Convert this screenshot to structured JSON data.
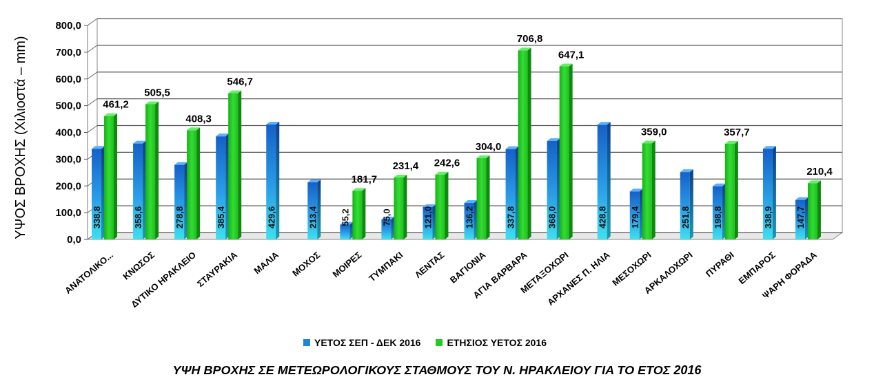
{
  "chart_data": {
    "type": "bar",
    "title": "ΥΨΗ ΒΡΟΧΗΣ ΣΕ ΜΕΤΕΩΡΟΛΟΓΙΚΟΥΣ ΣΤΑΘΜΟΥΣ ΤΟΥ Ν. ΗΡΑΚΛΕΙΟΥ ΓΙΑ ΤΟ ΕΤΟΣ 2016",
    "ylabel": "ΥΨΟΣ ΒΡΟΧΗΣ (Χιλιοστά – mm)",
    "xlabel": "",
    "ylim": [
      0,
      800
    ],
    "yticks": [
      "0,0",
      "100,0",
      "200,0",
      "300,0",
      "400,0",
      "500,0",
      "600,0",
      "700,0",
      "800,0"
    ],
    "grid": true,
    "legend": "bottom",
    "categories": [
      "ΑΝΑΤΟΛΙΚΟ...",
      "ΚΝΩΣΟΣ",
      "ΔΥΤΙΚΟ ΗΡΑΚΛΕΙΟ",
      "ΣΤΑΥΡΑΚΙΑ",
      "ΜΑΛΙΑ",
      "ΜΟΧΟΣ",
      "ΜΟΙΡΕΣ",
      "ΤΥΜΠΑΚΙ",
      "ΛΕΝΤΑΣ",
      "ΒΑΓΙΟΝΙΑ",
      "ΑΓΙΑ ΒΑΡΒΑΡΑ",
      "ΜΕΤΑΞΟΧΩΡΙ",
      "ΑΡΧΑΝΕΣ Π. ΗΛΙΑ",
      "ΜΕΣΟΧΩΡΙ",
      "ΑΡΚΑΛΟΧΩΡΙ",
      "ΠΥΡΑΘΙ",
      "ΕΜΠΑΡΟΣ",
      "ΨΑΡΗ ΦΟΡΑΔΑ"
    ],
    "series": [
      {
        "name": "ΥΕΤΟΣ ΣΕΠ - ΔΕΚ 2016",
        "color": "#1e88d8",
        "values": [
          338.8,
          358.6,
          278.8,
          385.4,
          429.6,
          213.4,
          55.2,
          75.0,
          121.0,
          136.2,
          337.8,
          368.0,
          428.8,
          179.4,
          251.8,
          198.8,
          338.9,
          147.7
        ],
        "labels": [
          "338,8",
          "358,6",
          "278,8",
          "385,4",
          "429,6",
          "213,4",
          "55,2",
          "75,0",
          "121,0",
          "136,2",
          "337,8",
          "368,0",
          "428,8",
          "179,4",
          "251,8",
          "198,8",
          "338,9",
          "147,7"
        ]
      },
      {
        "name": "ΕΤΗΣΙΟΣ ΥΕΤΟΣ 2016",
        "color": "#22cc22",
        "values": [
          461.2,
          505.5,
          408.3,
          546.7,
          null,
          null,
          181.7,
          231.4,
          242.6,
          304.0,
          706.8,
          647.1,
          null,
          359.0,
          null,
          357.7,
          null,
          210.4
        ],
        "labels": [
          "461,2",
          "505,5",
          "408,3",
          "546,7",
          null,
          null,
          "181,7",
          "231,4",
          "242,6",
          "304,0",
          "706,8",
          "647,1",
          null,
          "359,0",
          null,
          "357,7",
          null,
          "210,4"
        ]
      }
    ]
  }
}
